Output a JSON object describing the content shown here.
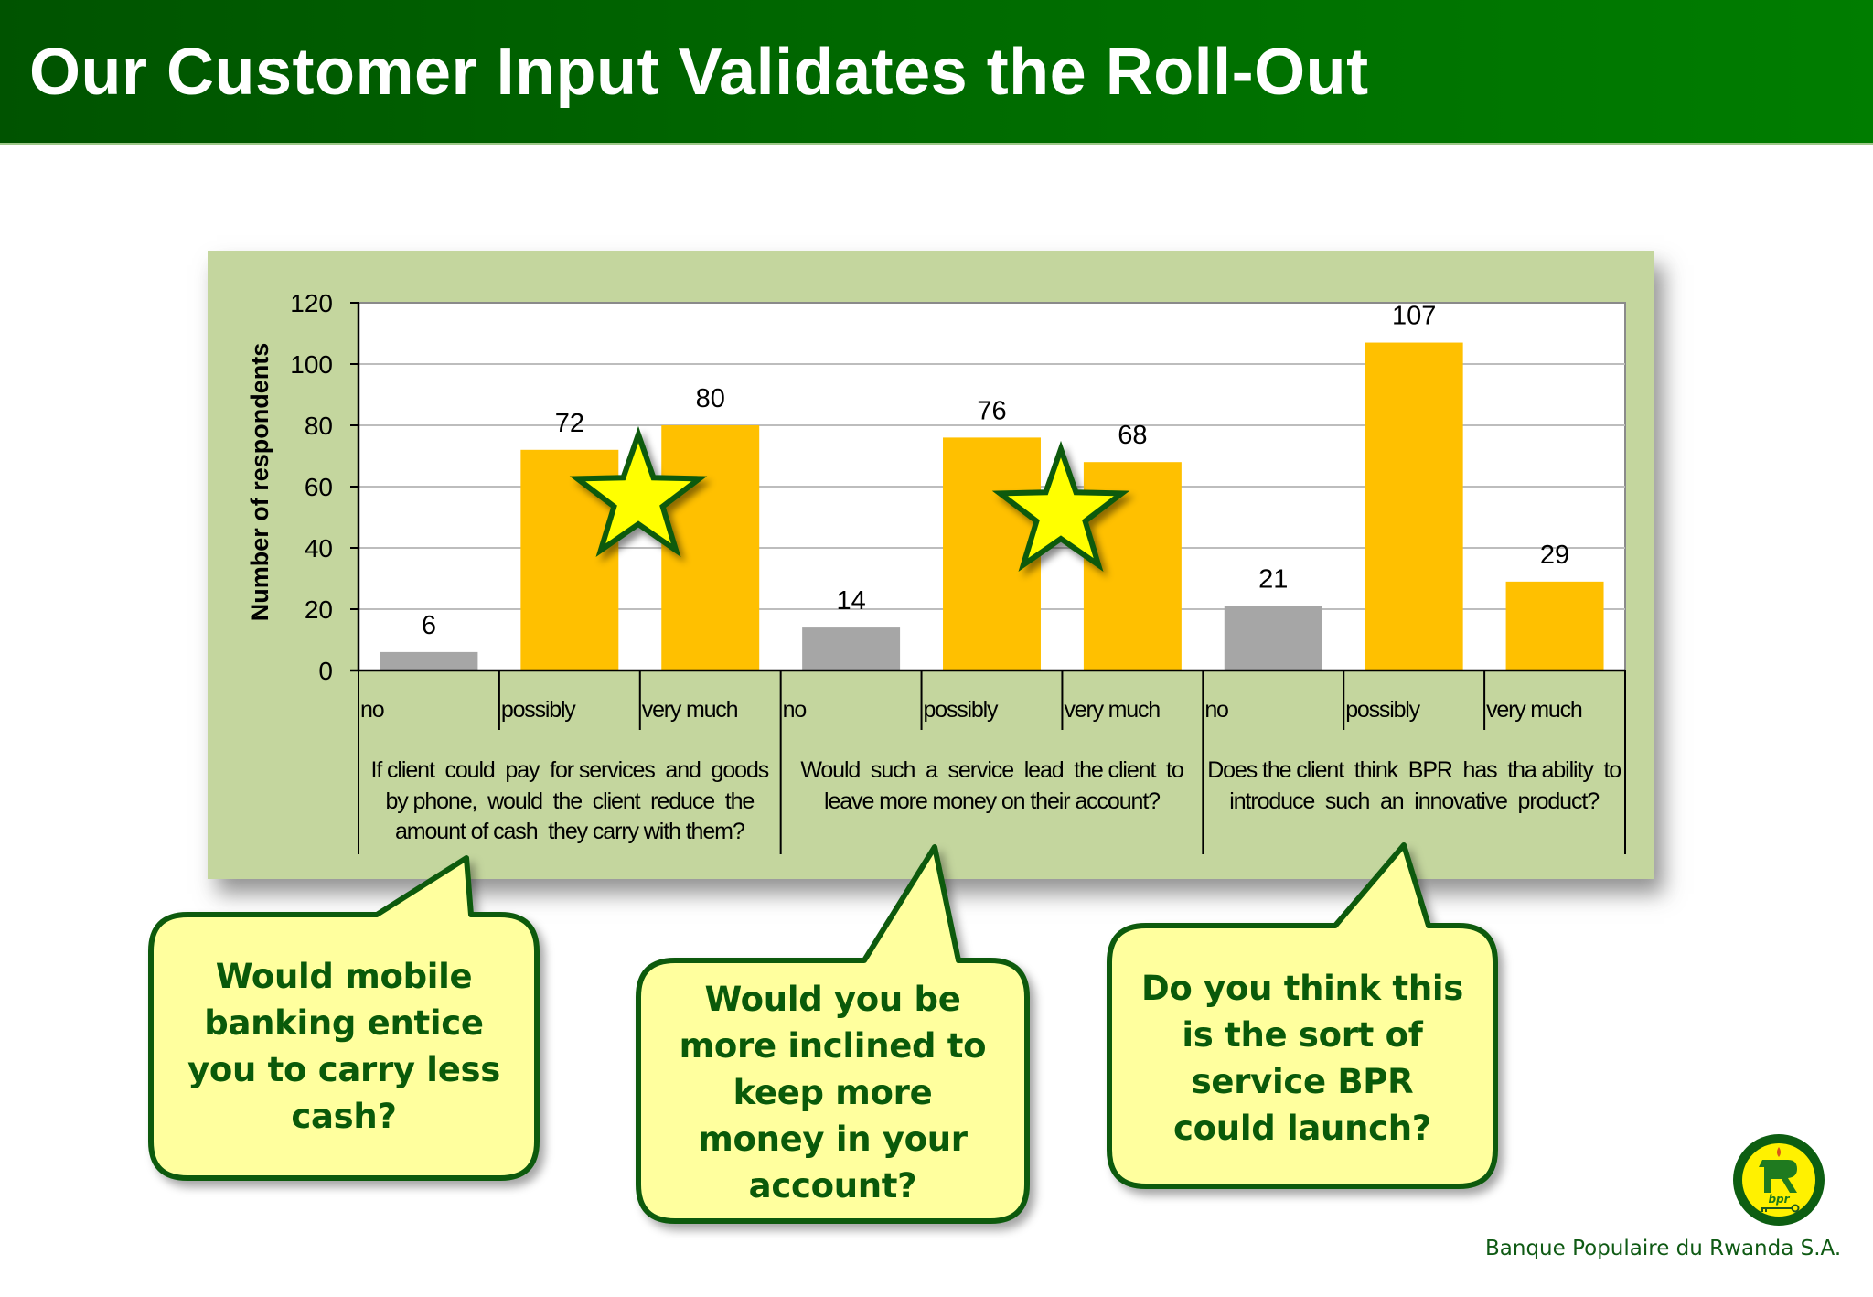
{
  "header": {
    "title": "Our Customer Input Validates the Roll-Out"
  },
  "colors": {
    "header_green": "#006400",
    "panel_green": "#c4d69e",
    "bar_gold": "#ffc000",
    "bar_gray": "#a6a6a6",
    "callout_fill": "#ffff9e",
    "callout_border": "#0a5a0a",
    "star_fill": "#ffff00",
    "star_border": "#0a5a0a"
  },
  "chart_data": {
    "type": "bar",
    "title": "",
    "xlabel": "",
    "ylabel": "Number of respondents",
    "ylim": [
      0,
      120
    ],
    "yticks": [
      0,
      20,
      40,
      60,
      80,
      100,
      120
    ],
    "grid": true,
    "legend": null,
    "groups": [
      {
        "question": "If client could pay for services and goods by phone, would the client reduce the amount of cash they carry with them?",
        "question_lines": [
          "If client  could  pay  for services  and  goods",
          "by phone,  would  the  client  reduce  the",
          "amount of cash  they carry with them?"
        ],
        "categories": [
          "no",
          "possibly",
          "very much"
        ],
        "values": [
          6,
          72,
          80
        ]
      },
      {
        "question": "Would such a service lead the client to leave more money on their account?",
        "question_lines": [
          "Would  such  a  service  lead  the client  to",
          "leave more money on their account?"
        ],
        "categories": [
          "no",
          "possibly",
          "very much"
        ],
        "values": [
          14,
          76,
          68
        ]
      },
      {
        "question": "Does the client think BPR has tha ability to introduce such an innovative product?",
        "question_lines": [
          "Does the client  think  BPR  has  tha ability  to",
          "introduce  such  an  innovative  product?"
        ],
        "categories": [
          "no",
          "possibly",
          "very much"
        ],
        "values": [
          21,
          107,
          29
        ]
      }
    ],
    "categories": [
      "no",
      "possibly",
      "very much",
      "no",
      "possibly",
      "very much",
      "no",
      "possibly",
      "very much"
    ],
    "values": [
      6,
      72,
      80,
      14,
      76,
      68,
      21,
      107,
      29
    ],
    "bar_colors": [
      "#a6a6a6",
      "#ffc000",
      "#ffc000",
      "#a6a6a6",
      "#ffc000",
      "#ffc000",
      "#a6a6a6",
      "#ffc000",
      "#ffc000"
    ],
    "annotations": [
      {
        "type": "star",
        "between": [
          "possibly",
          "very much"
        ],
        "group": 0
      },
      {
        "type": "star",
        "between": [
          "possibly",
          "very much"
        ],
        "group": 1
      }
    ]
  },
  "callouts": [
    {
      "lines": [
        "Would mobile",
        "banking entice",
        "you to carry less",
        "cash?"
      ]
    },
    {
      "lines": [
        "Would you be",
        "more inclined to",
        "keep more",
        "money in your",
        "account?"
      ]
    },
    {
      "lines": [
        "Do you think this",
        "is the sort of",
        "service BPR",
        "could launch?"
      ]
    }
  ],
  "footer": {
    "company": "Banque Populaire du Rwanda S.A.",
    "logo_initials": "bpr"
  }
}
